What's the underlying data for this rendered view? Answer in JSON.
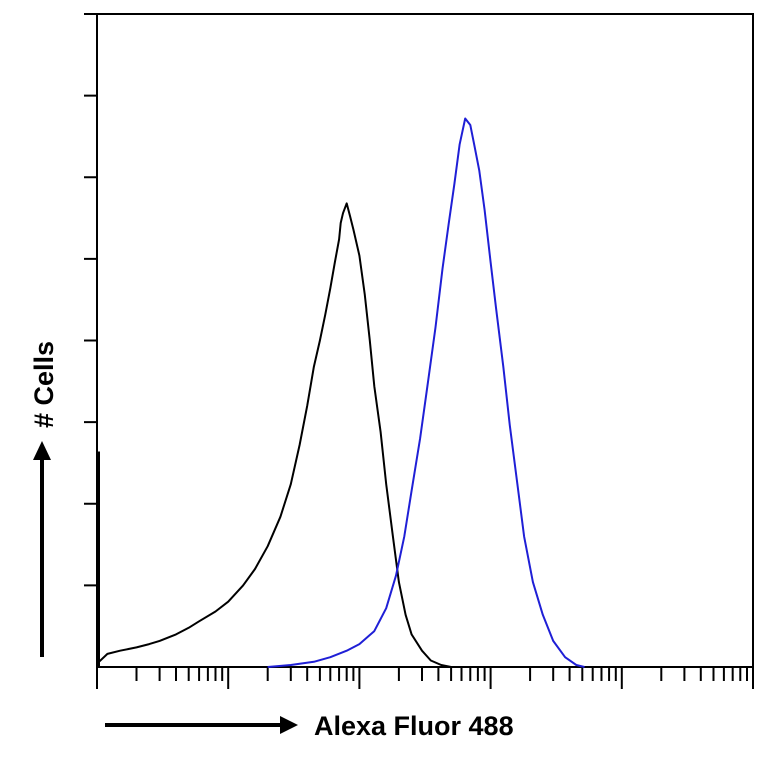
{
  "chart_data": {
    "type": "line",
    "title": "",
    "xlabel": "Alexa Fluor 488",
    "ylabel": "# Cells",
    "x_scale": "log",
    "xlim": [
      1,
      100000
    ],
    "ylim": [
      0,
      100
    ],
    "grid": false,
    "legend": "none",
    "series": [
      {
        "color": "#000000",
        "points": [
          [
            1.0,
            0.5
          ],
          [
            1.2,
            2.0
          ],
          [
            1.5,
            2.5
          ],
          [
            2.0,
            3.0
          ],
          [
            2.5,
            3.5
          ],
          [
            3.0,
            4.0
          ],
          [
            4.0,
            5.0
          ],
          [
            5.0,
            6.0
          ],
          [
            6.0,
            7.0
          ],
          [
            8.0,
            8.5
          ],
          [
            10.0,
            10.0
          ],
          [
            13.0,
            12.5
          ],
          [
            16.0,
            15.0
          ],
          [
            20.0,
            18.5
          ],
          [
            25.0,
            23.0
          ],
          [
            30.0,
            28.0
          ],
          [
            35.0,
            34.0
          ],
          [
            40.0,
            40.0
          ],
          [
            45.0,
            46.0
          ],
          [
            50.0,
            50.0
          ],
          [
            55.0,
            54.0
          ],
          [
            60.0,
            58.0
          ],
          [
            65.0,
            62.0
          ],
          [
            70.0,
            65.5
          ],
          [
            72.0,
            68.0
          ],
          [
            75.0,
            69.5
          ],
          [
            80.0,
            71.0
          ],
          [
            85.0,
            69.0
          ],
          [
            90.0,
            67.0
          ],
          [
            100.0,
            63.0
          ],
          [
            110.0,
            57.0
          ],
          [
            120.0,
            50.0
          ],
          [
            130.0,
            43.0
          ],
          [
            145.0,
            36.0
          ],
          [
            160.0,
            28.0
          ],
          [
            180.0,
            20.0
          ],
          [
            200.0,
            13.0
          ],
          [
            225.0,
            8.0
          ],
          [
            250.0,
            5.0
          ],
          [
            300.0,
            2.5
          ],
          [
            350.0,
            1.0
          ],
          [
            420.0,
            0.3
          ],
          [
            500.0,
            0.0
          ]
        ]
      },
      {
        "color": "#1f1fd6",
        "points": [
          [
            20.0,
            0.0
          ],
          [
            30.0,
            0.3
          ],
          [
            45.0,
            0.8
          ],
          [
            60.0,
            1.5
          ],
          [
            80.0,
            2.5
          ],
          [
            100.0,
            3.5
          ],
          [
            130.0,
            5.5
          ],
          [
            160.0,
            9.0
          ],
          [
            190.0,
            14.0
          ],
          [
            220.0,
            20.0
          ],
          [
            250.0,
            27.0
          ],
          [
            290.0,
            35.0
          ],
          [
            330.0,
            43.0
          ],
          [
            380.0,
            52.0
          ],
          [
            430.0,
            61.0
          ],
          [
            480.0,
            68.0
          ],
          [
            530.0,
            74.0
          ],
          [
            580.0,
            80.0
          ],
          [
            640.0,
            84.0
          ],
          [
            700.0,
            83.0
          ],
          [
            750.0,
            80.0
          ],
          [
            820.0,
            76.0
          ],
          [
            900.0,
            70.0
          ],
          [
            1000.0,
            62.0
          ],
          [
            1100.0,
            55.0
          ],
          [
            1250.0,
            46.0
          ],
          [
            1400.0,
            37.0
          ],
          [
            1600.0,
            28.0
          ],
          [
            1800.0,
            20.0
          ],
          [
            2100.0,
            13.0
          ],
          [
            2500.0,
            8.0
          ],
          [
            3000.0,
            4.0
          ],
          [
            3700.0,
            1.5
          ],
          [
            4500.0,
            0.3
          ],
          [
            5200.0,
            0.0
          ]
        ]
      }
    ]
  }
}
